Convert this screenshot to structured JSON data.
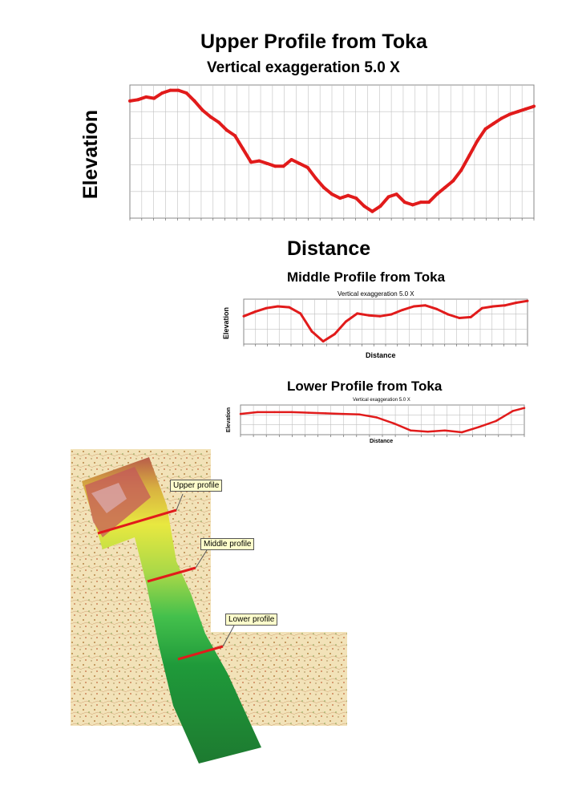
{
  "chart_data": [
    {
      "type": "line",
      "title": "Upper Profile from Toka",
      "subtitle": "Vertical exaggeration 5.0 X",
      "xlabel": "Distance",
      "ylabel": "Elevation",
      "series": [
        {
          "x": [
            0,
            2,
            4,
            6,
            8,
            10,
            12,
            14,
            16,
            18,
            20,
            22,
            24,
            26,
            28,
            30,
            32,
            34,
            36,
            38,
            40,
            42,
            44,
            46,
            48,
            50,
            52,
            54,
            56,
            58,
            60,
            62,
            64,
            66,
            68,
            70,
            72,
            74,
            76,
            78,
            80,
            82,
            84,
            86,
            88,
            90,
            92,
            94,
            96,
            98,
            100
          ],
          "y": [
            88,
            89,
            91,
            90,
            94,
            96,
            96,
            94,
            88,
            81,
            76,
            72,
            66,
            62,
            52,
            42,
            43,
            41,
            39,
            39,
            44,
            41,
            38,
            30,
            23,
            18,
            15,
            17,
            15,
            9,
            5,
            9,
            16,
            18,
            12,
            10,
            12,
            12,
            18,
            23,
            28,
            36,
            47,
            58,
            67,
            71,
            75,
            78,
            80,
            82,
            84
          ]
        }
      ]
    },
    {
      "type": "line",
      "title": "Middle Profile from Toka",
      "subtitle": "Vertical exaggeration 5.0 X",
      "xlabel": "Distance",
      "ylabel": "Elevation",
      "series": [
        {
          "x": [
            0,
            4,
            8,
            12,
            16,
            20,
            24,
            28,
            32,
            36,
            40,
            44,
            48,
            52,
            56,
            60,
            64,
            68,
            72,
            76,
            80,
            84,
            88,
            92,
            96,
            100
          ],
          "y": [
            62,
            72,
            80,
            84,
            82,
            68,
            28,
            6,
            22,
            50,
            68,
            64,
            62,
            66,
            76,
            84,
            86,
            78,
            66,
            58,
            60,
            80,
            84,
            86,
            92,
            96
          ]
        }
      ]
    },
    {
      "type": "line",
      "title": "Lower Profile from Toka",
      "subtitle": "Vertical exaggeration 5.0 X",
      "xlabel": "Distance",
      "ylabel": "Elevation",
      "series": [
        {
          "x": [
            0,
            6,
            12,
            18,
            24,
            30,
            36,
            42,
            48,
            54,
            60,
            66,
            72,
            78,
            84,
            90,
            96,
            100
          ],
          "y": [
            70,
            76,
            76,
            76,
            74,
            72,
            70,
            68,
            58,
            38,
            14,
            10,
            14,
            8,
            26,
            46,
            80,
            90
          ]
        }
      ]
    }
  ],
  "map": {
    "labels": [
      "Upper profile",
      "Middle profile",
      "Lower profile"
    ]
  },
  "colors": {
    "profile_line": "#e11b1b",
    "grid": "#c0c0c0"
  }
}
